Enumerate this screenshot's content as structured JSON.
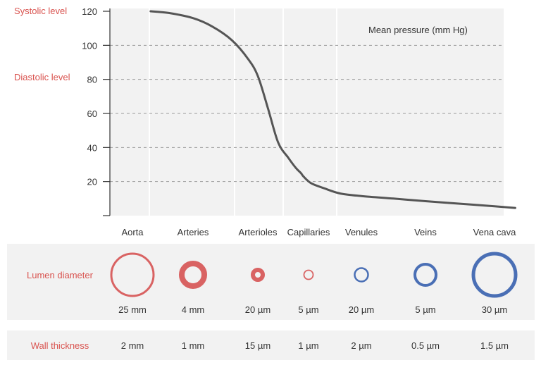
{
  "chart_data": {
    "type": "line",
    "title": "",
    "annotation": "Mean pressure (mm Hg)",
    "ylim": [
      0,
      120
    ],
    "y_ticks": [
      20,
      40,
      60,
      80,
      100,
      120
    ],
    "grid": "dashed horizontal",
    "categories": [
      "Aorta",
      "Arteries",
      "Arterioles",
      "Capillaries",
      "Venules",
      "Veins",
      "Vena cava"
    ],
    "series": [
      {
        "x": [
          0.3,
          0.6,
          1.0,
          1.3,
          1.6,
          1.85,
          2.0,
          2.2,
          2.4,
          2.6,
          2.75,
          2.85,
          2.9,
          3.05,
          3.3,
          3.6,
          4.0,
          4.5,
          5.0,
          5.5,
          6.0,
          6.3
        ],
        "values": [
          120,
          119,
          116,
          111,
          103,
          92,
          82,
          63,
          43,
          34,
          28,
          25,
          23,
          19,
          16,
          13,
          11.5,
          10,
          8.5,
          7,
          5.5,
          4.5
        ]
      }
    ],
    "reference_levels": [
      {
        "label": "Systolic level",
        "value": 120
      },
      {
        "label": "Diastolic level",
        "value": 80
      }
    ],
    "colors": {
      "curve": "#555555",
      "label_red": "#d9534f",
      "lumen_red": "#d96363",
      "lumen_blue": "#4a6fb5",
      "plot_bg": "#f2f2f2"
    }
  },
  "lumen": {
    "label": "Lumen diameter",
    "items": [
      {
        "vessel": "Aorta",
        "value": "25 mm",
        "color": "red",
        "style": "ring-thin",
        "size": "large"
      },
      {
        "vessel": "Arteries",
        "value": "4 mm",
        "color": "red",
        "style": "ring-thick",
        "size": "medium"
      },
      {
        "vessel": "Arterioles",
        "value": "20 µm",
        "color": "red",
        "style": "ring-thick",
        "size": "small"
      },
      {
        "vessel": "Capillaries",
        "value": "5 µm",
        "color": "red",
        "style": "ring-thin",
        "size": "tiny"
      },
      {
        "vessel": "Venules",
        "value": "20 µm",
        "color": "blue",
        "style": "ring-thin",
        "size": "small"
      },
      {
        "vessel": "Veins",
        "value": "5 µm",
        "color": "blue",
        "style": "ring-medium",
        "size": "medium"
      },
      {
        "vessel": "Vena cava",
        "value": "30 µm",
        "color": "blue",
        "style": "ring-medium",
        "size": "large"
      }
    ]
  },
  "wall": {
    "label": "Wall thickness",
    "values": [
      "2 mm",
      "1 mm",
      "15 µm",
      "1 µm",
      "2 µm",
      "0.5 µm",
      "1.5 µm"
    ]
  }
}
